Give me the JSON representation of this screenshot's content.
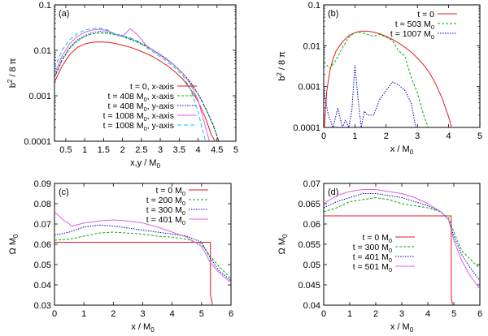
{
  "chart_data": [
    {
      "type": "line",
      "panel_label": "(a)",
      "xlabel": "x,y / M",
      "xlabel_sub": "0",
      "ylabel": "b",
      "ylabel_sup": "2",
      "ylabel_rest": " / 8 π",
      "xlim": [
        0.2,
        5
      ],
      "ylim": [
        0.0001,
        0.1
      ],
      "yscale": "log",
      "xticks": [
        0.5,
        1,
        1.5,
        2,
        2.5,
        3,
        3.5,
        4,
        4.5,
        5
      ],
      "xtick_labels": [
        "0.5",
        "1",
        "1.5",
        "2",
        "2.5",
        "3",
        "3.5",
        "4",
        "4.5",
        "5"
      ],
      "yticks": [
        0.0001,
        0.001,
        0.01,
        0.1
      ],
      "ytick_labels": [
        "0.0001",
        "0.001",
        "0.01",
        "0.1"
      ],
      "legend_position": "bottom-right",
      "series": [
        {
          "name": "t = 0, x-axis",
          "label_parts": [
            "t = 0, x-axis"
          ],
          "color": "#e41a1c",
          "dash": "",
          "x": [
            0.2,
            0.4,
            0.6,
            0.8,
            1.0,
            1.2,
            1.4,
            1.6,
            1.8,
            2.0,
            2.2,
            2.4,
            2.6,
            2.8,
            3.0,
            3.2,
            3.4,
            3.6,
            3.8,
            4.0,
            4.2,
            4.35,
            4.45
          ],
          "values": [
            0.002,
            0.0045,
            0.008,
            0.0115,
            0.0138,
            0.015,
            0.0153,
            0.015,
            0.0142,
            0.013,
            0.0117,
            0.0102,
            0.0087,
            0.0073,
            0.0058,
            0.0045,
            0.0033,
            0.0023,
            0.0014,
            0.00075,
            0.00032,
            0.00014,
            0.0001
          ]
        },
        {
          "name": "t = 408 M0, x-axis",
          "label_parts": [
            "t = 408 M",
            "0",
            ", x-axis"
          ],
          "color": "#00b000",
          "dash": "3,2",
          "x": [
            0.2,
            0.4,
            0.6,
            0.8,
            1.0,
            1.2,
            1.4,
            1.6,
            1.8,
            2.0,
            2.2,
            2.4,
            2.6,
            2.8,
            3.0,
            3.2,
            3.4,
            3.6,
            3.8,
            4.0,
            4.2,
            4.4,
            4.55
          ],
          "values": [
            0.0025,
            0.006,
            0.011,
            0.016,
            0.02,
            0.023,
            0.024,
            0.0235,
            0.022,
            0.02,
            0.0175,
            0.015,
            0.0125,
            0.01,
            0.0079,
            0.006,
            0.0044,
            0.003,
            0.0019,
            0.0011,
            0.00052,
            0.00022,
            0.0001
          ]
        },
        {
          "name": "t = 408 M0, y-axis",
          "label_parts": [
            "t = 408 M",
            "0",
            ", y-axis"
          ],
          "color": "#0000c0",
          "dash": "1.5,1.5",
          "x": [
            0.2,
            0.4,
            0.6,
            0.8,
            1.0,
            1.2,
            1.4,
            1.6,
            1.8,
            2.0,
            2.2,
            2.4,
            2.6,
            2.8,
            3.0,
            3.2,
            3.4,
            3.6,
            3.8,
            4.0,
            4.2,
            4.4,
            4.55
          ],
          "values": [
            0.0026,
            0.0062,
            0.0115,
            0.0168,
            0.021,
            0.0245,
            0.026,
            0.025,
            0.023,
            0.021,
            0.018,
            0.0155,
            0.013,
            0.0103,
            0.0081,
            0.0062,
            0.0045,
            0.0031,
            0.002,
            0.0011,
            0.00054,
            0.00023,
            0.0001
          ]
        },
        {
          "name": "t = 1008 M0, x-axis",
          "label_parts": [
            "t = 1008 M",
            "0",
            ", x-axis"
          ],
          "color": "#e060e0",
          "dash": "",
          "x": [
            0.2,
            0.4,
            0.6,
            0.8,
            1.0,
            1.2,
            1.4,
            1.6,
            1.8,
            2.0,
            2.2,
            2.4,
            2.6,
            2.8,
            3.0,
            3.2,
            3.4,
            3.6,
            3.8,
            4.0,
            4.2,
            4.3
          ],
          "values": [
            0.003,
            0.0075,
            0.014,
            0.02,
            0.025,
            0.028,
            0.029,
            0.027,
            0.023,
            0.02,
            0.03,
            0.022,
            0.0135,
            0.01,
            0.0078,
            0.006,
            0.0045,
            0.0031,
            0.0018,
            0.0008,
            0.0002,
            0.0001
          ]
        },
        {
          "name": "t = 1008 M0, y-axis",
          "label_parts": [
            "t = 1008 M",
            "0",
            ", y-axis"
          ],
          "color": "#00c8e0",
          "dash": "5,3",
          "x": [
            0.2,
            0.4,
            0.6,
            0.8,
            1.0,
            1.2,
            1.4,
            1.6,
            1.8,
            2.0,
            2.2,
            2.4,
            2.6,
            2.8,
            3.0,
            3.2,
            3.4,
            3.6,
            3.8,
            4.0,
            4.1,
            4.2
          ],
          "values": [
            0.004,
            0.01,
            0.017,
            0.023,
            0.028,
            0.03,
            0.031,
            0.028,
            0.023,
            0.021,
            0.019,
            0.016,
            0.012,
            0.0092,
            0.0072,
            0.0055,
            0.004,
            0.0027,
            0.0014,
            0.00045,
            0.0002,
            0.0001
          ]
        }
      ]
    },
    {
      "type": "line",
      "panel_label": "(b)",
      "xlabel": "x / M",
      "xlabel_sub": "0",
      "ylabel": "b",
      "ylabel_sup": "2",
      "ylabel_rest": " / 8 π",
      "xlim": [
        0,
        5
      ],
      "ylim": [
        0.0001,
        0.1
      ],
      "yscale": "log",
      "xticks": [
        0,
        1,
        2,
        3,
        4,
        5
      ],
      "xtick_labels": [
        "0",
        "1",
        "2",
        "3",
        "4",
        "5"
      ],
      "yticks": [
        0.0001,
        0.001,
        0.01,
        0.1
      ],
      "ytick_labels": [
        "0.0001",
        "0.001",
        "0.01",
        "0.1"
      ],
      "legend_position": "top-right",
      "series": [
        {
          "name": "t = 0",
          "label_parts": [
            "t = 0"
          ],
          "color": "#e41a1c",
          "dash": "",
          "x": [
            0.02,
            0.1,
            0.2,
            0.3,
            0.4,
            0.6,
            0.8,
            1.0,
            1.2,
            1.4,
            1.6,
            1.8,
            2.0,
            2.2,
            2.4,
            2.6,
            2.8,
            3.0,
            3.2,
            3.4,
            3.6,
            3.8,
            4.0,
            4.1,
            4.15
          ],
          "values": [
            0.0001,
            0.0008,
            0.0025,
            0.0048,
            0.0075,
            0.0125,
            0.0175,
            0.021,
            0.0228,
            0.0227,
            0.0215,
            0.0195,
            0.017,
            0.0143,
            0.0117,
            0.0092,
            0.007,
            0.005,
            0.0034,
            0.0021,
            0.0011,
            0.0005,
            0.00018,
            0.0001,
            0.0001
          ]
        },
        {
          "name": "t = 503 M0",
          "label_parts": [
            "t = 503 M",
            "0"
          ],
          "color": "#00b000",
          "dash": "3,2",
          "x": [
            0.0,
            0.2,
            0.4,
            0.6,
            0.8,
            1.0,
            1.2,
            1.4,
            1.6,
            1.8,
            2.0,
            2.2,
            2.4,
            2.6,
            2.8,
            3.0,
            3.2,
            3.35
          ],
          "values": [
            0.004,
            0.0028,
            0.0045,
            0.009,
            0.016,
            0.021,
            0.021,
            0.019,
            0.017,
            0.019,
            0.016,
            0.0135,
            0.0075,
            0.0055,
            0.0017,
            0.0007,
            0.0002,
            0.0001
          ]
        },
        {
          "name": "t = 1007 M0",
          "label_parts": [
            "t = 1007 M",
            "0"
          ],
          "color": "#0000c0",
          "dash": "1.5,1.5",
          "x": [
            0.0,
            0.15,
            0.3,
            0.45,
            0.6,
            0.7,
            0.8,
            0.9,
            1.0,
            1.1,
            1.2,
            1.3,
            1.4,
            1.6,
            1.8,
            2.0,
            2.2,
            2.4,
            2.6,
            2.8,
            2.95
          ],
          "values": [
            0.0008,
            0.0002,
            0.0001,
            0.0003,
            0.0001,
            0.00015,
            0.0001,
            0.00025,
            0.0033,
            0.0005,
            0.0001,
            0.00025,
            0.0002,
            0.0002,
            0.0005,
            0.0008,
            0.0013,
            0.0011,
            0.0008,
            0.0004,
            0.0001
          ]
        }
      ]
    },
    {
      "type": "line",
      "panel_label": "(c)",
      "xlabel": "x / M",
      "xlabel_sub": "0",
      "ylabel": "Ω M",
      "ylabel_sub": "0",
      "xlim": [
        0,
        6
      ],
      "ylim": [
        0.03,
        0.09
      ],
      "yscale": "linear",
      "xticks": [
        0,
        1,
        2,
        3,
        4,
        5,
        6
      ],
      "xtick_labels": [
        "0",
        "1",
        "2",
        "3",
        "4",
        "5",
        "6"
      ],
      "yticks": [
        0.03,
        0.04,
        0.05,
        0.06,
        0.07,
        0.08,
        0.09
      ],
      "ytick_labels": [
        "0.03",
        "0.04",
        "0.05",
        "0.06",
        "0.07",
        "0.08",
        "0.09"
      ],
      "legend_position": "top-right",
      "series": [
        {
          "name": "t = 0 M0",
          "label_parts": [
            "t = 0 M",
            "0"
          ],
          "color": "#e41a1c",
          "dash": "",
          "x": [
            0.0,
            1.0,
            2.0,
            3.0,
            4.0,
            5.0,
            5.3,
            5.3,
            5.38
          ],
          "values": [
            0.061,
            0.061,
            0.061,
            0.061,
            0.061,
            0.061,
            0.061,
            0.035,
            0.03
          ]
        },
        {
          "name": "t = 200 M0",
          "label_parts": [
            "t = 200 M",
            "0"
          ],
          "color": "#00b000",
          "dash": "3,2",
          "x": [
            0.0,
            0.5,
            1.0,
            1.5,
            2.0,
            2.5,
            3.0,
            3.5,
            4.0,
            4.5,
            5.0,
            5.3,
            5.6,
            6.0
          ],
          "values": [
            0.062,
            0.0625,
            0.064,
            0.0655,
            0.066,
            0.0655,
            0.065,
            0.064,
            0.0635,
            0.0625,
            0.06,
            0.054,
            0.049,
            0.043
          ]
        },
        {
          "name": "t = 300 M0",
          "label_parts": [
            "t = 300 M",
            "0"
          ],
          "color": "#0000c0",
          "dash": "1.5,1.5",
          "x": [
            0.0,
            0.5,
            1.0,
            1.5,
            2.0,
            2.5,
            3.0,
            3.5,
            4.0,
            4.5,
            5.0,
            5.3,
            5.6,
            6.0
          ],
          "values": [
            0.0645,
            0.066,
            0.0685,
            0.0695,
            0.069,
            0.068,
            0.067,
            0.066,
            0.065,
            0.064,
            0.061,
            0.053,
            0.047,
            0.042
          ]
        },
        {
          "name": "t = 401 M0",
          "label_parts": [
            "t = 401 M",
            "0"
          ],
          "color": "#e060e0",
          "dash": "",
          "x": [
            0.0,
            0.3,
            0.6,
            1.0,
            1.5,
            2.0,
            2.5,
            3.0,
            3.5,
            4.0,
            4.5,
            5.0,
            5.3,
            5.6,
            6.0
          ],
          "values": [
            0.076,
            0.072,
            0.069,
            0.0705,
            0.0715,
            0.072,
            0.0715,
            0.0705,
            0.0685,
            0.066,
            0.0635,
            0.059,
            0.051,
            0.046,
            0.041
          ]
        }
      ]
    },
    {
      "type": "line",
      "panel_label": "(d)",
      "xlabel": "x / M",
      "xlabel_sub": "0",
      "ylabel": "Ω M",
      "ylabel_sub": "0",
      "xlim": [
        0,
        6
      ],
      "ylim": [
        0.04,
        0.07
      ],
      "yscale": "linear",
      "xticks": [
        0,
        1,
        2,
        3,
        4,
        5,
        6
      ],
      "xtick_labels": [
        "0",
        "1",
        "2",
        "3",
        "4",
        "5",
        "6"
      ],
      "yticks": [
        0.04,
        0.045,
        0.05,
        0.055,
        0.06,
        0.065,
        0.07
      ],
      "ytick_labels": [
        "0.04",
        "0.045",
        "0.05",
        "0.055",
        "0.06",
        "0.065",
        "0.07"
      ],
      "legend_position": "bottom-left",
      "series": [
        {
          "name": "t = 0 M0",
          "label_parts": [
            "t = 0 M",
            "0"
          ],
          "color": "#e41a1c",
          "dash": "",
          "x": [
            0.0,
            1.0,
            2.0,
            3.0,
            4.0,
            4.9,
            4.9,
            4.95
          ],
          "values": [
            0.062,
            0.062,
            0.062,
            0.062,
            0.062,
            0.062,
            0.042,
            0.04
          ]
        },
        {
          "name": "t = 300 M0",
          "label_parts": [
            "t = 300 M",
            "0"
          ],
          "color": "#00b000",
          "dash": "3,2",
          "x": [
            0.0,
            0.5,
            1.0,
            1.5,
            2.0,
            2.5,
            3.0,
            3.5,
            4.0,
            4.5,
            4.8,
            5.0,
            5.3,
            5.6,
            6.0
          ],
          "values": [
            0.063,
            0.064,
            0.0655,
            0.066,
            0.0665,
            0.066,
            0.065,
            0.0645,
            0.064,
            0.063,
            0.0615,
            0.058,
            0.0535,
            0.0515,
            0.049
          ]
        },
        {
          "name": "t = 401 M0",
          "label_parts": [
            "t = 401 M",
            "0"
          ],
          "color": "#0000c0",
          "dash": "1.5,1.5",
          "x": [
            0.0,
            0.5,
            1.0,
            1.5,
            2.0,
            2.5,
            3.0,
            3.5,
            4.0,
            4.5,
            4.8,
            5.0,
            5.3,
            5.6,
            6.0
          ],
          "values": [
            0.064,
            0.0655,
            0.0665,
            0.0675,
            0.0675,
            0.067,
            0.0665,
            0.0655,
            0.0645,
            0.063,
            0.061,
            0.057,
            0.0525,
            0.0495,
            0.046
          ]
        },
        {
          "name": "t = 501 M0",
          "label_parts": [
            "t = 501 M",
            "0"
          ],
          "color": "#e060e0",
          "dash": "",
          "x": [
            0.0,
            0.5,
            1.0,
            1.5,
            2.0,
            2.5,
            3.0,
            3.5,
            4.0,
            4.5,
            4.8,
            5.0,
            5.3,
            5.6,
            6.0
          ],
          "values": [
            0.065,
            0.067,
            0.068,
            0.0685,
            0.0685,
            0.068,
            0.0675,
            0.0665,
            0.065,
            0.063,
            0.061,
            0.056,
            0.051,
            0.0475,
            0.044
          ]
        }
      ]
    }
  ]
}
